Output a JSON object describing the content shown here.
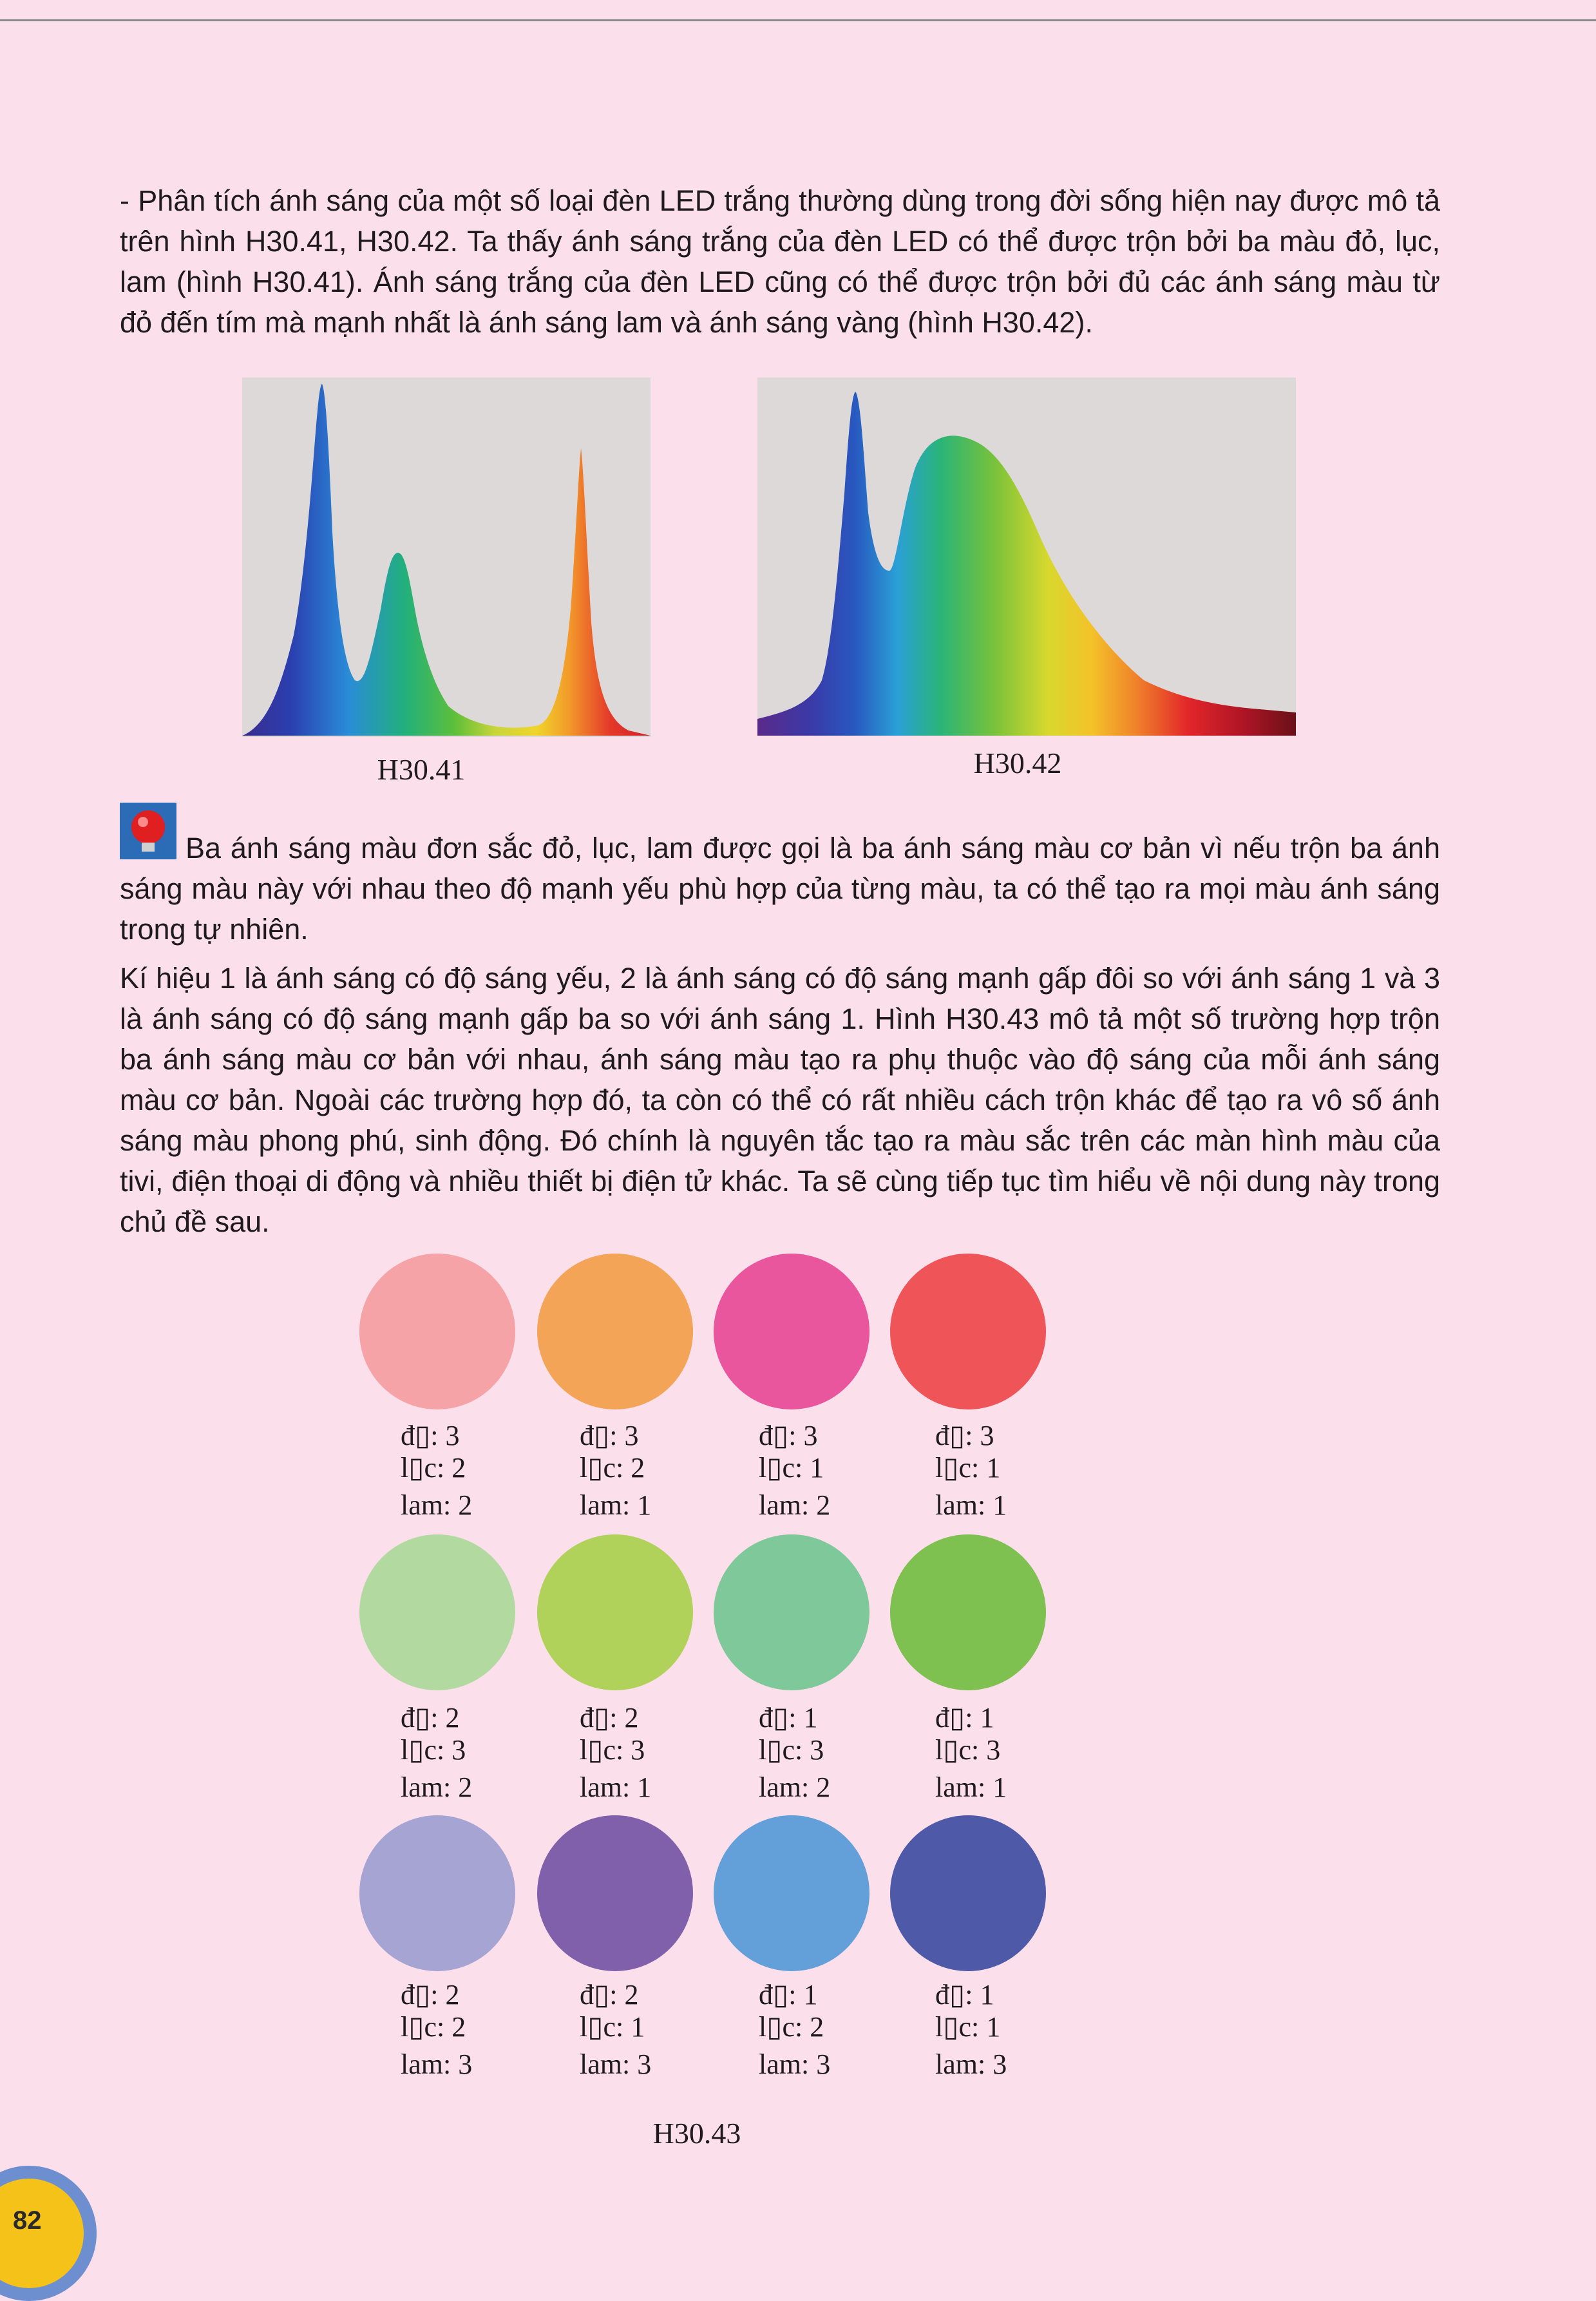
{
  "paragraphs": {
    "intro": "- Phân tích ánh sáng của một số loại đèn LED trắng thường dùng trong đời sống hiện nay được mô tả trên hình H30.41, H30.42. Ta thấy ánh sáng trắng của đèn LED có thể được trộn bởi ba màu đỏ, lục, lam (hình H30.41). Ánh sáng trắng của đèn LED cũng có thể được trộn bởi đủ các ánh sáng màu từ đỏ đến tím mà mạnh nhất là ánh sáng lam và ánh sáng vàng (hình H30.42).",
    "note": "Ba ánh sáng màu đơn sắc đỏ, lục, lam được gọi là ba ánh sáng màu cơ bản vì nếu trộn ba ánh sáng màu này với nhau theo độ mạnh yếu phù hợp của từng màu, ta có thể tạo ra mọi màu ánh sáng trong tự nhiên.",
    "body": "Kí hiệu 1 là ánh sáng có độ sáng yếu, 2 là ánh sáng có độ sáng mạnh gấp đôi so với ánh sáng 1 và 3 là ánh sáng có độ sáng mạnh gấp ba so với ánh sáng 1. Hình H30.43 mô tả một số trường hợp trộn ba ánh sáng màu cơ bản với nhau, ánh sáng màu tạo ra phụ thuộc vào độ sáng của mỗi ánh sáng màu cơ bản. Ngoài các trường hợp đó, ta còn có thể có rất nhiều cách trộn khác để tạo ra vô số ánh sáng màu phong phú, sinh động. Đó chính là nguyên tắc tạo ra màu sắc trên các màn hình màu của tivi, điện thoại di động và nhiều thiết bị điện tử khác. Ta sẽ cùng tiếp tục tìm hiểu về nội dung này trong chủ đề sau."
  },
  "figures": {
    "h41_caption": "H30.41",
    "h42_caption": "H30.42",
    "h43_caption": "H30.43"
  },
  "note_icon": "light-bulb-icon",
  "swatches": [
    {
      "color": "#f6a3a8",
      "red": "đ▯: 3",
      "green": "l▯c: 2",
      "blue": "lam: 2"
    },
    {
      "color": "#f4a456",
      "red": "đ▯: 3",
      "green": "l▯c: 2",
      "blue": "lam: 1"
    },
    {
      "color": "#e9569d",
      "red": "đ▯: 3",
      "green": "l▯c: 1",
      "blue": "lam: 2"
    },
    {
      "color": "#ef5558",
      "red": "đ▯: 3",
      "green": "l▯c: 1",
      "blue": "lam: 1"
    },
    {
      "color": "#b2daa0",
      "red": "đ▯: 2",
      "green": "l▯c: 3",
      "blue": "lam: 2"
    },
    {
      "color": "#b0d25a",
      "red": "đ▯: 2",
      "green": "l▯c: 3",
      "blue": "lam: 1"
    },
    {
      "color": "#7fc899",
      "red": "đ▯: 1",
      "green": "l▯c: 3",
      "blue": "lam: 2"
    },
    {
      "color": "#7ec151",
      "red": "đ▯: 1",
      "green": "l▯c: 3",
      "blue": "lam: 1"
    },
    {
      "color": "#a6a4d3",
      "red": "đ▯: 2",
      "green": "l▯c: 2",
      "blue": "lam: 3"
    },
    {
      "color": "#8060aa",
      "red": "đ▯: 2",
      "green": "l▯c: 1",
      "blue": "lam: 3"
    },
    {
      "color": "#639fd8",
      "red": "đ▯: 1",
      "green": "l▯c: 2",
      "blue": "lam: 3"
    },
    {
      "color": "#4e59a7",
      "red": "đ▯: 1",
      "green": "l▯c: 1",
      "blue": "lam: 3"
    }
  ],
  "page_number": "82",
  "colors": {
    "page_background": "#fbdfea",
    "badge_outer": "#6d8fd0",
    "badge_inner": "#f5c21a"
  }
}
